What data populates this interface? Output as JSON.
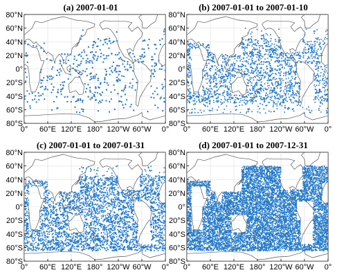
{
  "figure": {
    "marker_color": "#1f77c9",
    "coast_color": "#555555"
  },
  "chart_data": [
    {
      "type": "scatter",
      "title": "(a) 2007-01-01",
      "xlim": [
        0,
        360
      ],
      "ylim": [
        -80,
        80
      ],
      "x_ticks": [
        "0°",
        "60°E",
        "120°E",
        "180°",
        "120°W",
        "60°W",
        "0°"
      ],
      "y_ticks": [
        "80°N",
        "60°N",
        "40°N",
        "20°N",
        "0°",
        "20°S",
        "40°S",
        "60°S",
        "80°S"
      ],
      "grid": true,
      "point_count": 420,
      "seed": 11
    },
    {
      "type": "scatter",
      "title": "(b) 2007-01-01 to 2007-01-10",
      "xlim": [
        0,
        360
      ],
      "ylim": [
        -80,
        80
      ],
      "x_ticks": [
        "0°",
        "60°E",
        "120°E",
        "180°",
        "120°W",
        "60°W",
        "0°"
      ],
      "y_ticks": [
        "80°N",
        "60°N",
        "40°N",
        "20°N",
        "0°",
        "20°S",
        "40°S",
        "60°S",
        "80°S"
      ],
      "grid": true,
      "point_count": 1800,
      "seed": 23
    },
    {
      "type": "scatter",
      "title": "(c) 2007-01-01 to 2007-01-31",
      "xlim": [
        0,
        360
      ],
      "ylim": [
        -80,
        80
      ],
      "x_ticks": [
        "0°",
        "60°E",
        "120°E",
        "180°",
        "120°W",
        "60°W",
        "0°"
      ],
      "y_ticks": [
        "80°N",
        "60°N",
        "40°N",
        "20°N",
        "0°",
        "20°S",
        "40°S",
        "60°S",
        "80°S"
      ],
      "grid": true,
      "point_count": 3200,
      "seed": 37
    },
    {
      "type": "scatter",
      "title": "(d) 2007-01-01 to 2007-12-31",
      "xlim": [
        0,
        360
      ],
      "ylim": [
        -80,
        80
      ],
      "x_ticks": [
        "0°",
        "60°E",
        "120°E",
        "180°",
        "120°W",
        "60°W",
        "0°"
      ],
      "y_ticks": [
        "80°N",
        "60°N",
        "40°N",
        "20°N",
        "0°",
        "20°S",
        "40°S",
        "60°S",
        "80°S"
      ],
      "grid": true,
      "point_count": 9000,
      "seed": 53
    }
  ]
}
